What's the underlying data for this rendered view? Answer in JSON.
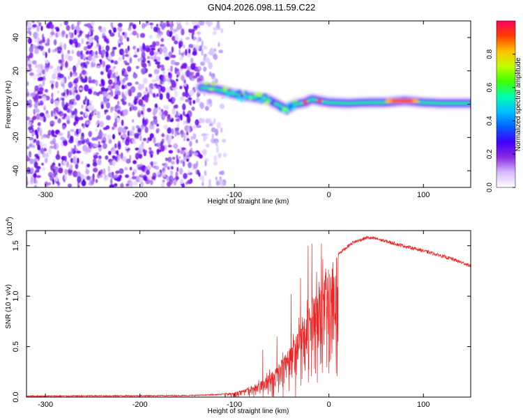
{
  "title": "GN04.2026.098.11.59.C22",
  "chart_data": [
    {
      "type": "heatmap",
      "name": "spectrogram",
      "xlabel": "Height of straight line (km)",
      "ylabel": "Frequency (Hz)",
      "xlim": [
        -320,
        150
      ],
      "ylim": [
        -50,
        50
      ],
      "xticks": [
        -300,
        -200,
        -100,
        0,
        100
      ],
      "xtick_labels": [
        "-300",
        "-200",
        "-100",
        "0",
        "100"
      ],
      "yticks": [
        -40,
        -20,
        0,
        20,
        40
      ],
      "ytick_labels": [
        "-40",
        "-20",
        "0",
        "20",
        "40"
      ],
      "noise_region_x": [
        -320,
        -110
      ],
      "signal_ridge": {
        "x": [
          -135,
          -120,
          -100,
          -80,
          -65,
          -55,
          -45,
          -35,
          -25,
          -18,
          -10,
          0,
          20,
          40,
          60,
          80,
          100,
          120,
          150
        ],
        "y": [
          10,
          9,
          6,
          4,
          3,
          0,
          -3,
          0,
          1,
          3,
          2,
          1,
          0.5,
          1,
          1,
          2,
          1,
          0.5,
          0.5
        ],
        "peak_regions_x": [
          [
            60,
            95
          ]
        ]
      },
      "colorbar": {
        "label": "Normalized spectral amplitude",
        "ticks": [
          0.0,
          0.2,
          0.4,
          0.6,
          0.8
        ],
        "tick_labels": [
          "0.0",
          "0.2",
          "0.4",
          "0.6",
          "0.8"
        ],
        "range": [
          0,
          1
        ],
        "colors": [
          "#ffffff",
          "#d8b8ff",
          "#8a2be2",
          "#4000ff",
          "#0060ff",
          "#00c0ff",
          "#00ffb0",
          "#40ff00",
          "#c0ff00",
          "#ffc000",
          "#ff4000",
          "#ff0060"
        ]
      }
    },
    {
      "type": "line",
      "name": "snr",
      "xlabel": "Height of straight line (km)",
      "ylabel": "SNR (10 * v/v)",
      "y_scale_label": "(x10",
      "y_scale_exp": "4",
      "xlim": [
        -320,
        150
      ],
      "ylim": [
        0,
        1.65
      ],
      "xticks": [
        -300,
        -200,
        -100,
        0,
        100
      ],
      "xtick_labels": [
        "-300",
        "-200",
        "-100",
        "0",
        "100"
      ],
      "yticks": [
        0.0,
        0.5,
        1.0,
        1.5
      ],
      "ytick_labels": [
        "0.0",
        "0.5",
        "1.0",
        "1.5"
      ],
      "color": "#ee2222",
      "envelope": {
        "x": [
          -320,
          -150,
          -115,
          -100,
          -80,
          -60,
          -40,
          -25,
          -10,
          0,
          10,
          25,
          40,
          50,
          70,
          100,
          130,
          150
        ],
        "y": [
          0.01,
          0.015,
          0.025,
          0.05,
          0.1,
          0.25,
          0.5,
          0.8,
          1.1,
          1.28,
          1.42,
          1.53,
          1.58,
          1.57,
          1.52,
          1.45,
          1.37,
          1.3
        ]
      },
      "spikes": [
        {
          "x": -18,
          "y": 1.52
        },
        {
          "x": -22,
          "y": 1.5
        },
        {
          "x": -8,
          "y": 1.52
        },
        {
          "x": -30,
          "y": 1.18
        },
        {
          "x": -40,
          "y": 1.02
        },
        {
          "x": -55,
          "y": 0.6
        },
        {
          "x": -70,
          "y": 0.47
        }
      ]
    }
  ]
}
